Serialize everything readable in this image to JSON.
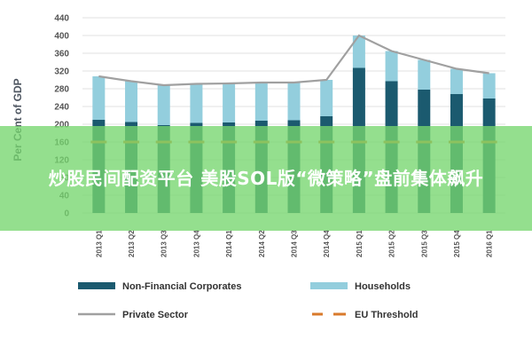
{
  "chart_data": {
    "type": "bar",
    "title": "",
    "ylabel": "Per Cent of GDP",
    "xlabel": "",
    "ylim": [
      0,
      440
    ],
    "yticks": [
      0,
      40,
      80,
      120,
      160,
      200,
      240,
      280,
      320,
      360,
      400,
      440
    ],
    "categories": [
      "2013 Q1",
      "2013 Q2",
      "2013 Q3",
      "2013 Q4",
      "2014 Q1",
      "2014 Q2",
      "2014 Q3",
      "2014 Q4",
      "2015 Q1",
      "2015 Q2",
      "2015 Q3",
      "2015 Q4",
      "2016 Q1"
    ],
    "series": [
      {
        "name": "Non-Financial Corporates",
        "kind": "bar-stack",
        "color": "#1b5a6f",
        "values": [
          210,
          205,
          198,
          203,
          204,
          208,
          209,
          218,
          327,
          297,
          278,
          268,
          258
        ]
      },
      {
        "name": "Households",
        "kind": "bar-stack",
        "color": "#93cedd",
        "values": [
          98,
          92,
          90,
          88,
          88,
          86,
          85,
          82,
          73,
          68,
          67,
          57,
          57
        ]
      },
      {
        "name": "Private Sector",
        "kind": "line",
        "color": "#a0a0a0",
        "values": [
          308,
          297,
          288,
          291,
          292,
          294,
          294,
          300,
          400,
          365,
          345,
          325,
          315
        ]
      },
      {
        "name": "EU Threshold",
        "kind": "dashed-line",
        "color": "#d97a2b",
        "values": [
          160,
          160,
          160,
          160,
          160,
          160,
          160,
          160,
          160,
          160,
          160,
          160,
          160
        ]
      }
    ],
    "legend_position": "bottom",
    "grid": true
  },
  "overlay": {
    "text": "炒股民间配资平台 美股SOL版“微策略”盘前集体飙升"
  }
}
